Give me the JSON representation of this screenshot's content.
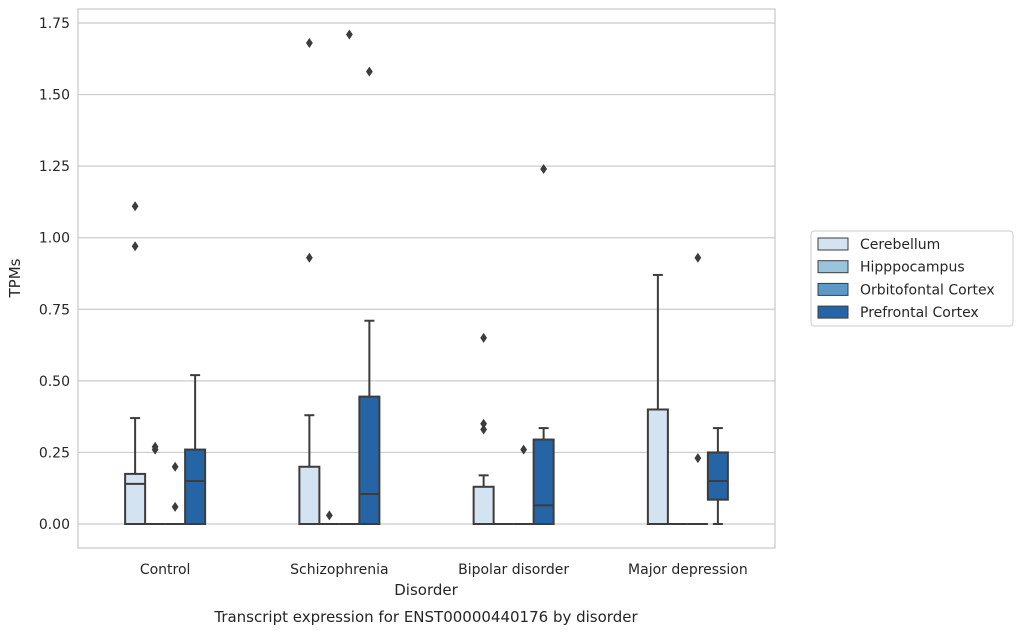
{
  "chart_data": {
    "type": "boxplot",
    "title": "Transcript expression for ENST00000440176 by disorder",
    "xlabel": "Disorder",
    "ylabel": "TPMs",
    "ylim": [
      -0.08,
      1.8
    ],
    "yticks": [
      "0.00",
      "0.25",
      "0.50",
      "0.75",
      "1.00",
      "1.25",
      "1.50",
      "1.75"
    ],
    "ytick_values": [
      0,
      0.25,
      0.5,
      0.75,
      1.0,
      1.25,
      1.5,
      1.75
    ],
    "grid": true,
    "legend_position": "right",
    "categories": [
      "Control",
      "Schizophrenia",
      "Bipolar disorder",
      "Major depression"
    ],
    "series": [
      {
        "name": "Cerebellum",
        "color": "#d3e3f1",
        "boxes": [
          {
            "q1": 0,
            "median": 0.14,
            "q3": 0.175,
            "whisker_low": 0,
            "whisker_high": 0.37,
            "outliers": [
              0.97,
              1.11
            ]
          },
          {
            "q1": 0,
            "median": 0,
            "q3": 0.2,
            "whisker_low": 0,
            "whisker_high": 0.38,
            "outliers": [
              0.93,
              1.68
            ]
          },
          {
            "q1": 0,
            "median": 0,
            "q3": 0.13,
            "whisker_low": 0,
            "whisker_high": 0.17,
            "outliers": [
              0.33,
              0.35,
              0.65
            ]
          },
          {
            "q1": 0,
            "median": 0,
            "q3": 0.4,
            "whisker_low": 0,
            "whisker_high": 0.87,
            "outliers": []
          }
        ]
      },
      {
        "name": "Hipppocampus",
        "color": "#9ac4de",
        "boxes": [
          {
            "q1": 0,
            "median": 0,
            "q3": 0,
            "whisker_low": 0,
            "whisker_high": 0,
            "outliers": [
              0.26,
              0.27
            ]
          },
          {
            "q1": 0,
            "median": 0,
            "q3": 0,
            "whisker_low": 0,
            "whisker_high": 0,
            "outliers": [
              0.03
            ]
          },
          {
            "q1": 0,
            "median": 0,
            "q3": 0,
            "whisker_low": 0,
            "whisker_high": 0,
            "outliers": []
          },
          {
            "q1": 0,
            "median": 0,
            "q3": 0,
            "whisker_low": 0,
            "whisker_high": 0,
            "outliers": []
          }
        ]
      },
      {
        "name": "Orbitofontal Cortex",
        "color": "#5b9ac8",
        "boxes": [
          {
            "q1": 0,
            "median": 0,
            "q3": 0,
            "whisker_low": 0,
            "whisker_high": 0,
            "outliers": [
              0.06,
              0.2
            ]
          },
          {
            "q1": 0,
            "median": 0,
            "q3": 0,
            "whisker_low": 0,
            "whisker_high": 0,
            "outliers": [
              1.71
            ]
          },
          {
            "q1": 0,
            "median": 0,
            "q3": 0,
            "whisker_low": 0,
            "whisker_high": 0,
            "outliers": [
              0.26
            ]
          },
          {
            "q1": 0,
            "median": 0,
            "q3": 0,
            "whisker_low": 0,
            "whisker_high": 0,
            "outliers": [
              0.23,
              0.93
            ]
          }
        ]
      },
      {
        "name": "Prefrontal Cortex",
        "color": "#2565a6",
        "boxes": [
          {
            "q1": 0,
            "median": 0.15,
            "q3": 0.26,
            "whisker_low": 0,
            "whisker_high": 0.52,
            "outliers": []
          },
          {
            "q1": 0,
            "median": 0.105,
            "q3": 0.445,
            "whisker_low": 0,
            "whisker_high": 0.71,
            "outliers": [
              1.58
            ]
          },
          {
            "q1": 0,
            "median": 0.065,
            "q3": 0.295,
            "whisker_low": 0,
            "whisker_high": 0.335,
            "outliers": [
              1.24
            ]
          },
          {
            "q1": 0.085,
            "median": 0.15,
            "q3": 0.25,
            "whisker_low": 0,
            "whisker_high": 0.335,
            "outliers": []
          }
        ]
      }
    ]
  }
}
